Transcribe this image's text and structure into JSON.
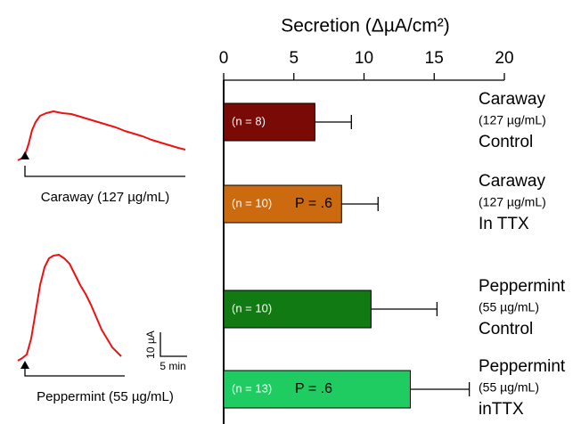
{
  "chart_data": {
    "type": "bar",
    "orientation": "horizontal",
    "title": "Secretion (ΔµA/cm²)",
    "categories": [
      "Caraway",
      "Caraway",
      "Peppermint",
      "Peppermint"
    ],
    "concentrations": [
      "(127 µg/mL)",
      "(127 µg/mL)",
      "(55 µg/mL)",
      "(55 µg/mL)"
    ],
    "conditions": [
      "Control",
      "In TTX",
      "Control",
      "inTTX"
    ],
    "values": [
      6.5,
      8.4,
      10.5,
      13.3
    ],
    "errors": [
      2.6,
      2.6,
      4.7,
      4.2
    ],
    "colors": [
      "#7a0a06",
      "#cc6a10",
      "#127a12",
      "#1fcc62"
    ],
    "n_labels": [
      "(n = 8)",
      "(n = 10)",
      "(n = 10)",
      "(n = 13)"
    ],
    "p_labels": [
      null,
      "P = .6",
      null,
      "P = .6"
    ],
    "xlim": [
      0,
      20
    ],
    "xticks": [
      0,
      5,
      10,
      15,
      20
    ]
  },
  "insets": {
    "traces": [
      "Caraway (127 µg/mL)",
      "Peppermint (55 µg/mL)"
    ],
    "scale_y": "10 µA",
    "scale_x": "5 min"
  }
}
